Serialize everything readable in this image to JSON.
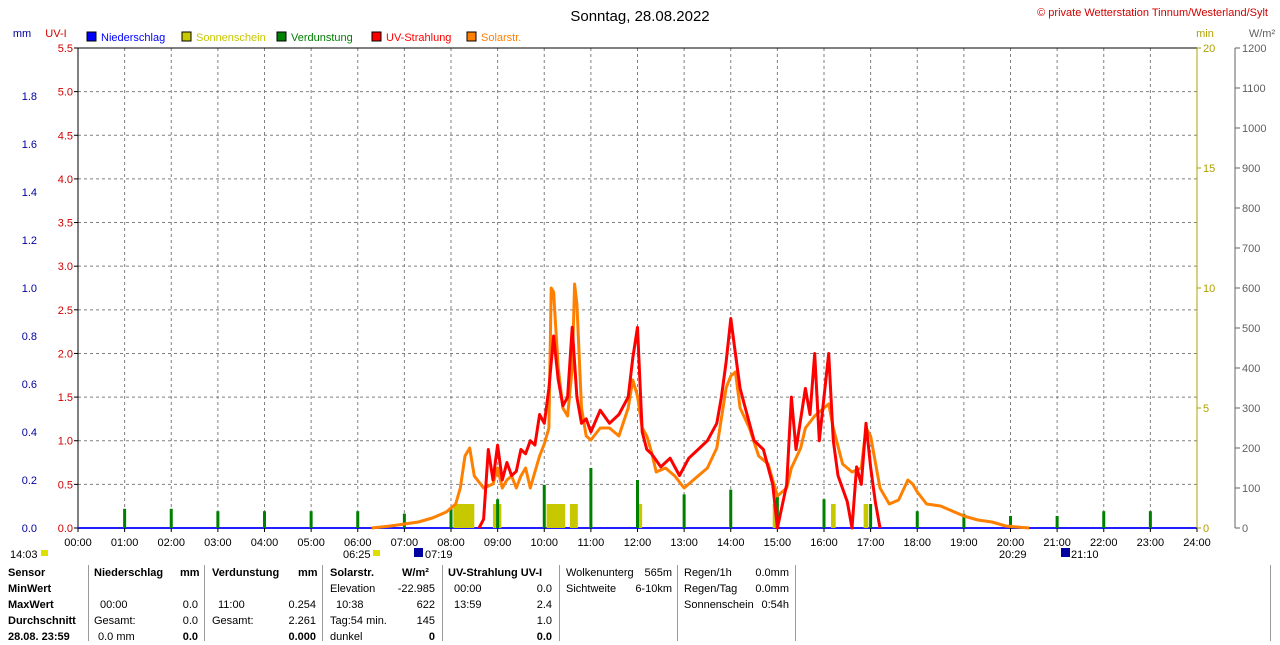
{
  "title": "Sonntag, 28.08.2022",
  "copyright": "© private Wetterstation Tinnum/Westerland/Sylt",
  "axis_labels": {
    "mm": "mm",
    "uvi": "UV-I",
    "min": "min",
    "wm2": "W/m²"
  },
  "legend": [
    {
      "label": "Niederschlag",
      "color": "#0000ff"
    },
    {
      "label": "Sonnenschein",
      "color": "#c8c800"
    },
    {
      "label": "Verdunstung",
      "color": "#008000"
    },
    {
      "label": "UV-Strahlung",
      "color": "#ff0000"
    },
    {
      "label": "Solarstr.",
      "color": "#ff8000"
    }
  ],
  "colors": {
    "mm": "#0000a0",
    "uvi": "#d00000",
    "min": "#b0a000",
    "wm2": "#606060",
    "grid": "#808080"
  },
  "sun_times": {
    "start": "14:03",
    "sunrise": "06:25",
    "sunrise2": "07:19",
    "sunset": "20:29",
    "sunset2": "21:10"
  },
  "chart_data": {
    "type": "line",
    "x_ticks": [
      "00:00",
      "01:00",
      "02:00",
      "03:00",
      "04:00",
      "05:00",
      "06:00",
      "07:00",
      "08:00",
      "09:00",
      "10:00",
      "11:00",
      "12:00",
      "13:00",
      "14:00",
      "15:00",
      "16:00",
      "17:00",
      "18:00",
      "19:00",
      "20:00",
      "21:00",
      "22:00",
      "23:00",
      "24:00"
    ],
    "axes": {
      "mm": {
        "ticks": [
          "0.0",
          "0.2",
          "0.4",
          "0.6",
          "0.8",
          "1.0",
          "1.2",
          "1.4",
          "1.6",
          "1.8"
        ],
        "max": 2.0
      },
      "uvi": {
        "ticks": [
          "0.0",
          "0.5",
          "1.0",
          "1.5",
          "2.0",
          "2.5",
          "3.0",
          "3.5",
          "4.0",
          "4.5",
          "5.0",
          "5.5"
        ],
        "max": 5.5
      },
      "min": {
        "ticks": [
          "0",
          "5",
          "10",
          "15",
          "20"
        ],
        "max": 20
      },
      "wm2": {
        "ticks": [
          "0",
          "100",
          "200",
          "300",
          "400",
          "500",
          "600",
          "700",
          "800",
          "900",
          "1000",
          "1100",
          "1200"
        ],
        "max": 1200
      }
    },
    "series": [
      {
        "name": "Solarstr.",
        "axis": "wm2",
        "points": [
          [
            6.3,
            0
          ],
          [
            6.7,
            5
          ],
          [
            7.0,
            10
          ],
          [
            7.3,
            15
          ],
          [
            7.6,
            25
          ],
          [
            7.9,
            40
          ],
          [
            8.1,
            60
          ],
          [
            8.2,
            100
          ],
          [
            8.3,
            180
          ],
          [
            8.4,
            200
          ],
          [
            8.5,
            130
          ],
          [
            8.7,
            100
          ],
          [
            8.9,
            110
          ],
          [
            9.0,
            150
          ],
          [
            9.1,
            100
          ],
          [
            9.2,
            120
          ],
          [
            9.3,
            130
          ],
          [
            9.4,
            100
          ],
          [
            9.5,
            130
          ],
          [
            9.6,
            150
          ],
          [
            9.7,
            100
          ],
          [
            9.8,
            140
          ],
          [
            9.9,
            180
          ],
          [
            10.0,
            210
          ],
          [
            10.1,
            250
          ],
          [
            10.15,
            600
          ],
          [
            10.2,
            590
          ],
          [
            10.3,
            400
          ],
          [
            10.4,
            300
          ],
          [
            10.5,
            280
          ],
          [
            10.6,
            400
          ],
          [
            10.65,
            610
          ],
          [
            10.7,
            560
          ],
          [
            10.8,
            300
          ],
          [
            10.9,
            230
          ],
          [
            11.0,
            220
          ],
          [
            11.2,
            250
          ],
          [
            11.4,
            250
          ],
          [
            11.6,
            230
          ],
          [
            11.8,
            300
          ],
          [
            11.9,
            370
          ],
          [
            12.0,
            330
          ],
          [
            12.1,
            250
          ],
          [
            12.2,
            230
          ],
          [
            12.3,
            190
          ],
          [
            12.4,
            140
          ],
          [
            12.6,
            150
          ],
          [
            12.8,
            130
          ],
          [
            13.0,
            100
          ],
          [
            13.2,
            120
          ],
          [
            13.5,
            150
          ],
          [
            13.7,
            200
          ],
          [
            13.9,
            350
          ],
          [
            14.0,
            380
          ],
          [
            14.1,
            390
          ],
          [
            14.2,
            300
          ],
          [
            14.4,
            250
          ],
          [
            14.6,
            180
          ],
          [
            14.8,
            160
          ],
          [
            14.9,
            120
          ],
          [
            15.0,
            80
          ],
          [
            15.2,
            100
          ],
          [
            15.3,
            150
          ],
          [
            15.5,
            200
          ],
          [
            15.6,
            250
          ],
          [
            15.8,
            280
          ],
          [
            16.0,
            300
          ],
          [
            16.1,
            310
          ],
          [
            16.2,
            250
          ],
          [
            16.4,
            160
          ],
          [
            16.6,
            140
          ],
          [
            16.8,
            150
          ],
          [
            16.9,
            250
          ],
          [
            17.0,
            230
          ],
          [
            17.2,
            100
          ],
          [
            17.4,
            60
          ],
          [
            17.6,
            70
          ],
          [
            17.8,
            120
          ],
          [
            17.9,
            110
          ],
          [
            18.0,
            90
          ],
          [
            18.2,
            60
          ],
          [
            18.5,
            55
          ],
          [
            18.8,
            40
          ],
          [
            19.0,
            30
          ],
          [
            19.3,
            20
          ],
          [
            19.6,
            15
          ],
          [
            19.9,
            5
          ],
          [
            20.2,
            2
          ],
          [
            20.4,
            0
          ]
        ]
      },
      {
        "name": "UV-Strahlung",
        "axis": "uvi",
        "points": [
          [
            8.6,
            0
          ],
          [
            8.7,
            0.1
          ],
          [
            8.8,
            0.9
          ],
          [
            8.9,
            0.55
          ],
          [
            9.0,
            0.95
          ],
          [
            9.1,
            0.55
          ],
          [
            9.2,
            0.75
          ],
          [
            9.3,
            0.6
          ],
          [
            9.4,
            0.65
          ],
          [
            9.5,
            0.9
          ],
          [
            9.6,
            0.85
          ],
          [
            9.7,
            1.0
          ],
          [
            9.8,
            0.95
          ],
          [
            9.9,
            1.3
          ],
          [
            10.0,
            1.2
          ],
          [
            10.1,
            1.6
          ],
          [
            10.2,
            2.2
          ],
          [
            10.3,
            1.7
          ],
          [
            10.4,
            1.4
          ],
          [
            10.5,
            1.5
          ],
          [
            10.6,
            2.3
          ],
          [
            10.7,
            1.5
          ],
          [
            10.8,
            1.2
          ],
          [
            10.9,
            1.25
          ],
          [
            11.0,
            1.1
          ],
          [
            11.2,
            1.35
          ],
          [
            11.4,
            1.2
          ],
          [
            11.6,
            1.3
          ],
          [
            11.8,
            1.5
          ],
          [
            11.9,
            1.95
          ],
          [
            12.0,
            2.3
          ],
          [
            12.1,
            1.1
          ],
          [
            12.2,
            0.9
          ],
          [
            12.3,
            0.85
          ],
          [
            12.5,
            0.7
          ],
          [
            12.7,
            0.8
          ],
          [
            12.9,
            0.6
          ],
          [
            13.1,
            0.8
          ],
          [
            13.3,
            0.9
          ],
          [
            13.5,
            1.0
          ],
          [
            13.7,
            1.2
          ],
          [
            13.8,
            1.5
          ],
          [
            13.9,
            1.9
          ],
          [
            14.0,
            2.4
          ],
          [
            14.1,
            2.0
          ],
          [
            14.2,
            1.6
          ],
          [
            14.3,
            1.4
          ],
          [
            14.5,
            1.0
          ],
          [
            14.7,
            0.9
          ],
          [
            14.9,
            0.5
          ],
          [
            15.0,
            0
          ],
          [
            15.2,
            0.5
          ],
          [
            15.3,
            1.5
          ],
          [
            15.4,
            0.9
          ],
          [
            15.6,
            1.6
          ],
          [
            15.7,
            1.3
          ],
          [
            15.8,
            2.0
          ],
          [
            15.9,
            1.0
          ],
          [
            16.0,
            1.5
          ],
          [
            16.1,
            2.0
          ],
          [
            16.2,
            1.0
          ],
          [
            16.3,
            0.6
          ],
          [
            16.5,
            0.3
          ],
          [
            16.6,
            0
          ],
          [
            16.7,
            0.7
          ],
          [
            16.8,
            0.5
          ],
          [
            16.9,
            1.2
          ],
          [
            17.0,
            0.7
          ],
          [
            17.1,
            0.3
          ],
          [
            17.2,
            0
          ]
        ]
      }
    ],
    "bars": [
      {
        "name": "Verdunstung",
        "axis": "min",
        "hours": [
          1,
          2,
          3,
          4,
          5,
          6,
          7,
          8,
          9,
          10,
          11,
          12,
          13,
          14,
          15,
          16,
          17,
          18,
          19,
          20,
          21,
          22,
          23
        ],
        "values": [
          0.8,
          0.8,
          0.7,
          0.7,
          0.7,
          0.7,
          0.6,
          0.8,
          1.2,
          1.8,
          2.5,
          2.0,
          1.4,
          1.6,
          1.3,
          1.2,
          1.0,
          0.7,
          0.6,
          0.5,
          0.5,
          0.7,
          0.7
        ]
      },
      {
        "name": "Sonnenschein",
        "axis": "min",
        "spans": [
          [
            8.05,
            8.5,
            1.0
          ],
          [
            8.9,
            9.08,
            1.0
          ],
          [
            10.05,
            10.45,
            1.0
          ],
          [
            10.55,
            10.72,
            1.0
          ],
          [
            12.0,
            12.1,
            1.0
          ],
          [
            14.9,
            15.0,
            1.0
          ],
          [
            16.15,
            16.25,
            1.0
          ],
          [
            16.85,
            16.95,
            1.0
          ]
        ]
      }
    ]
  },
  "stats": {
    "headers": {
      "sensor": "Sensor",
      "niederschlag": "Niederschlag",
      "nd_unit": "mm",
      "verdunstung": "Verdunstung",
      "vd_unit": "mm",
      "solar": "Solarstr.",
      "solar_unit": "W/m²",
      "uv": "UV-Strahlung UV-I"
    },
    "rows": {
      "minwert": "MinWert",
      "maxwert": "MaxWert",
      "durchschnitt": "Durchschnitt",
      "datetime": "28.08. 23:59"
    },
    "niederschlag": {
      "max_time": "00:00",
      "max_val": "0.0",
      "gesamt_label": "Gesamt:",
      "gesamt_val": "0.0",
      "last_val": "0.0 mm",
      "last_total": "0.0"
    },
    "verdunstung": {
      "max_time": "11:00",
      "max_val": "0.254",
      "gesamt_label": "Gesamt:",
      "gesamt_val": "2.261",
      "last_total": "0.000"
    },
    "solar": {
      "elev_label": "Elevation",
      "elev_val": "-22.985",
      "max_time": "10:38",
      "max_val": "622",
      "tag_label": "Tag:54 min.",
      "tag_val": "145",
      "dunkel_label": "dunkel",
      "dunkel_val": "0"
    },
    "uv": {
      "min_time": "00:00",
      "min_val": "0.0",
      "max_time": "13:59",
      "max_val": "2.4",
      "avg_val": "1.0",
      "last_val": "0.0"
    },
    "cloud": {
      "wolken_label": "Wolkenunterg",
      "wolken_val": "565m",
      "sicht_label": "Sichtweite",
      "sicht_val": "6-10km"
    },
    "rain": {
      "h_label": "Regen/1h",
      "h_val": "0.0mm",
      "tag_label": "Regen/Tag",
      "tag_val": "0.0mm",
      "sun_label": "Sonnenschein",
      "sun_val": "0:54h"
    }
  }
}
